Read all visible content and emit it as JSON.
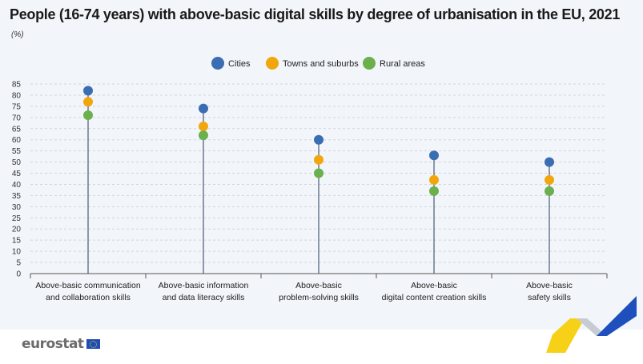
{
  "title": "People (16-74 years) with above-basic digital skills by degree of urbanisation in the EU, 2021",
  "unit": "(%)",
  "footer": {
    "logo_text": "eurostat"
  },
  "colors": {
    "cities": "#3b6db3",
    "towns": "#f2a60d",
    "rural": "#6ab04c",
    "stem": "#4a5a78",
    "grid": "#cfd6df"
  },
  "chart_data": {
    "type": "scatter",
    "categories": [
      [
        "Above-basic communication",
        "and collaboration skills"
      ],
      [
        "Above-basic information",
        "and data literacy skills"
      ],
      [
        "Above-basic",
        "problem-solving skills"
      ],
      [
        "Above-basic",
        "digital content creation skills"
      ],
      [
        "Above-basic",
        "safety skills"
      ]
    ],
    "series": [
      {
        "name": "Cities",
        "color": "#3b6db3",
        "values": [
          82,
          74,
          60,
          53,
          50
        ]
      },
      {
        "name": "Towns and suburbs",
        "color": "#f2a60d",
        "values": [
          77,
          66,
          51,
          42,
          42
        ]
      },
      {
        "name": "Rural areas",
        "color": "#6ab04c",
        "values": [
          71,
          62,
          45,
          37,
          37
        ]
      }
    ],
    "ylim": [
      0,
      85
    ],
    "yticks": [
      0,
      5,
      10,
      15,
      20,
      25,
      30,
      35,
      40,
      45,
      50,
      55,
      60,
      65,
      70,
      75,
      80,
      85
    ],
    "grid": true,
    "legend": "top-center"
  }
}
